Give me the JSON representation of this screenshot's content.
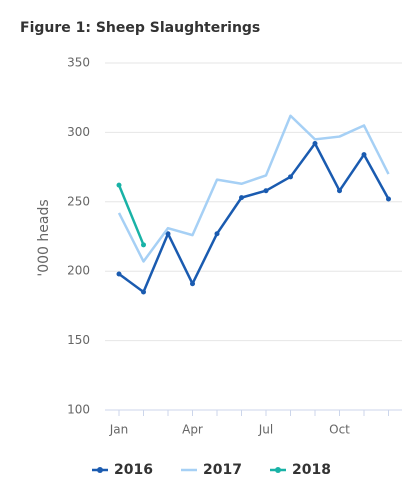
{
  "chart_data": {
    "type": "line",
    "title": "Figure 1: Sheep Slaughterings",
    "y_label": "'000 heads",
    "categories": [
      "Jan",
      null,
      null,
      "Apr",
      null,
      null,
      "Jul",
      null,
      null,
      "Oct",
      null,
      null
    ],
    "series": [
      {
        "name": "2016",
        "color": "#1a5bb0",
        "markers": true,
        "values": [
          198,
          185,
          227,
          191,
          227,
          253,
          258,
          268,
          292,
          258,
          284,
          252
        ]
      },
      {
        "name": "2017",
        "color": "#a6d0f5",
        "markers": false,
        "values": [
          242,
          207,
          231,
          226,
          266,
          263,
          269,
          312,
          295,
          297,
          305,
          270
        ]
      },
      {
        "name": "2018",
        "color": "#19b2a6",
        "markers": true,
        "values": [
          262,
          219,
          null,
          null,
          null,
          null,
          null,
          null,
          null,
          null,
          null,
          null
        ]
      }
    ],
    "ylim": [
      100,
      350
    ],
    "yticks": [
      100,
      150,
      200,
      250,
      300,
      350
    ],
    "grid": true,
    "legend": "bottom"
  }
}
